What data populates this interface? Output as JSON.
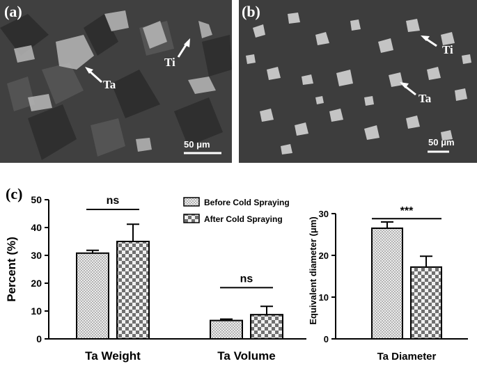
{
  "panel_a": {
    "letter": "(a)",
    "label_ta": "Ta",
    "label_ti": "Ti",
    "scale": "50 μm"
  },
  "panel_b": {
    "letter": "(b)",
    "label_ta": "Ta",
    "label_ti": "Ti",
    "scale": "50 μm"
  },
  "panel_c": {
    "letter": "(c)"
  },
  "colors": {
    "bar_fill": "#d8d8d8",
    "checker_dark": "#6e6e6e",
    "axis": "#000000"
  },
  "chart_data": [
    {
      "type": "bar",
      "categories": [
        "Ta Weight",
        "Ta Volume"
      ],
      "series": [
        {
          "name": "Before Cold Spraying",
          "values": [
            30.8,
            6.6
          ],
          "errors": [
            1.0,
            0.5
          ]
        },
        {
          "name": "After Cold Spraying",
          "values": [
            35.0,
            8.7
          ],
          "errors": [
            6.2,
            3.0
          ]
        }
      ],
      "ylabel": "Percent (%)",
      "ylim": [
        0,
        50
      ],
      "yticks": [
        0,
        10,
        20,
        30,
        40,
        50
      ],
      "significance": [
        "ns",
        "ns"
      ],
      "legend_position": "top-right"
    },
    {
      "type": "bar",
      "categories": [
        "Ta Diameter"
      ],
      "series": [
        {
          "name": "Before Cold Spraying",
          "values": [
            26.5
          ],
          "errors": [
            1.5
          ]
        },
        {
          "name": "After Cold Spraying",
          "values": [
            17.2
          ],
          "errors": [
            2.6
          ]
        }
      ],
      "ylabel": "Equivalent diameter (μm)",
      "ylim": [
        0,
        30
      ],
      "yticks": [
        0,
        10,
        20,
        30
      ],
      "significance": [
        "***"
      ]
    }
  ]
}
